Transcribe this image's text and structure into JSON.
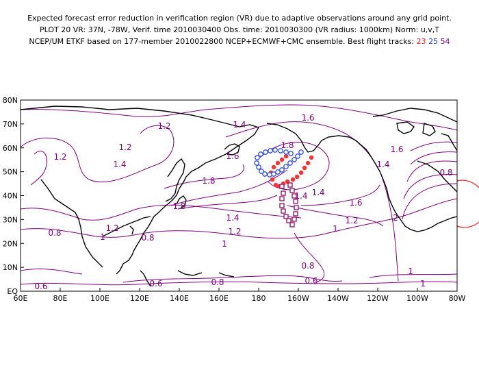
{
  "header": {
    "line1": "Expected forecast error reduction in verification region (VR) due to adaptive observations around any grid point.",
    "line2": "PLOT 20 VR: 37N, -78W, Verif. time 2010030400 Obs. time: 2010030300 (VR radius: 1000km) Norm: u,v,T",
    "line3_prefix": "NCEP/UM ETKF based on 177-member 2010022800 NCEP+ECMWF+CMC ensemble. Best flight tracks: ",
    "track_a": "23",
    "track_b": "25",
    "track_c": "54"
  },
  "map": {
    "lon_labels": [
      "60E",
      "80E",
      "100E",
      "120E",
      "140E",
      "160E",
      "180",
      "160W",
      "140W",
      "120W",
      "100W",
      "80W"
    ],
    "lat_labels": [
      "EQ",
      "10N",
      "20N",
      "30N",
      "40N",
      "50N",
      "60N",
      "70N",
      "80N"
    ],
    "contour_labels": [
      "1.2",
      "1.2",
      "1.4",
      "1.6",
      "1.4",
      "1.8",
      "1.6",
      "1.2",
      "1.4",
      "1.8",
      "1.8",
      "1.6",
      "1.4",
      "1.2",
      "1.4",
      "1.6",
      "1.2",
      "0.8",
      "1",
      "0.8",
      "1.2",
      "1",
      "1.4",
      "1",
      "2",
      "0.8",
      "0.6",
      "0.8",
      "0.6",
      "0.8",
      "0.6",
      "1",
      "1"
    ],
    "colors": {
      "contour": "#800080",
      "coast": "#000000",
      "track_a": "#ff3030",
      "track_b": "#3050e0",
      "track_c": "#8b0a6b",
      "verif": "#ff2020"
    }
  }
}
